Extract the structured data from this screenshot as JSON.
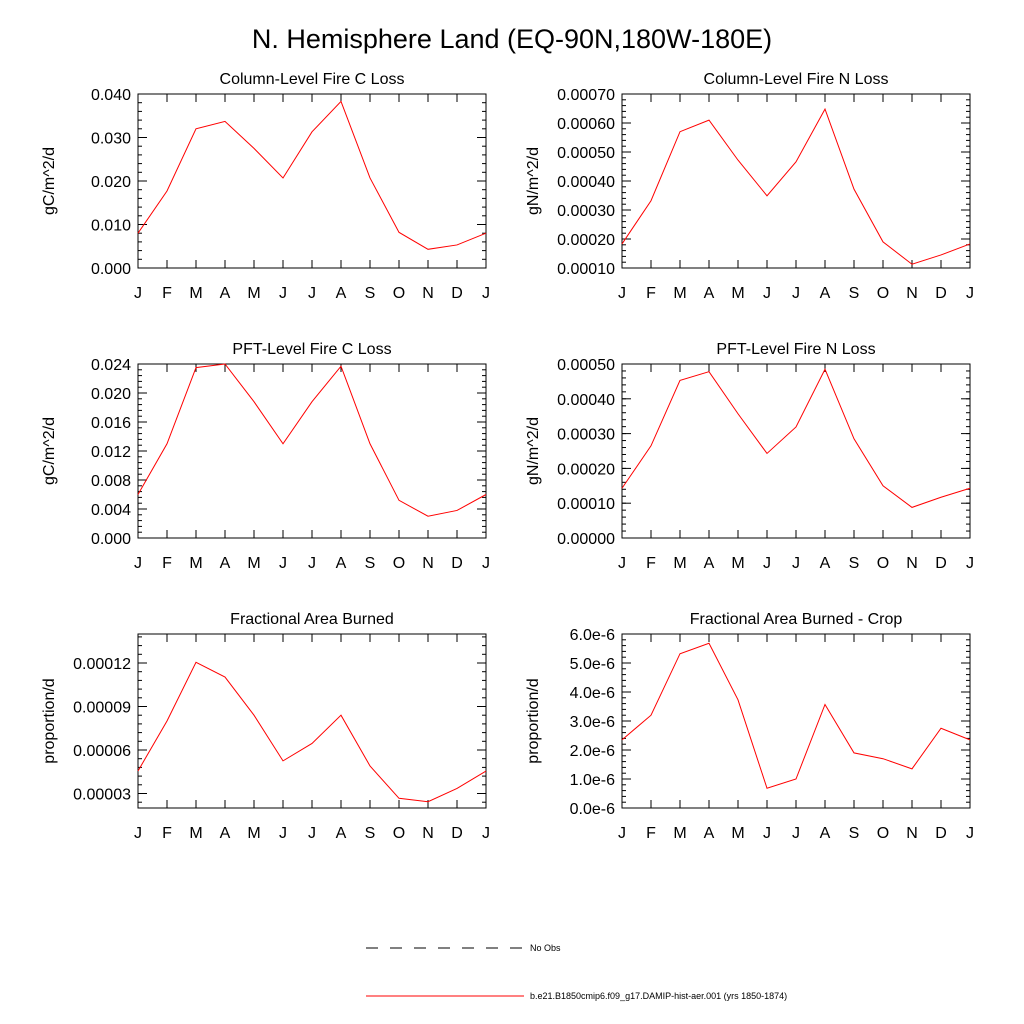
{
  "page_title": "N. Hemisphere Land (EQ-90N,180W-180E)",
  "colors": {
    "model_line": "#ff0000",
    "obs_line": "#000000",
    "axis": "#000000"
  },
  "legend": {
    "obs_label": "No Obs",
    "model_label": "b.e21.B1850cmip6.f09_g17.DAMIP-hist-aer.001 (yrs 1850-1874)"
  },
  "chart_data": [
    {
      "type": "line",
      "title": "Column-Level Fire C Loss",
      "xlabel": "",
      "ylabel": "gC/m^2/d",
      "categories": [
        "J",
        "F",
        "M",
        "A",
        "M",
        "J",
        "J",
        "A",
        "S",
        "O",
        "N",
        "D",
        "J"
      ],
      "ylim": [
        0.0,
        0.04
      ],
      "yticks": [
        0.0,
        0.01,
        0.02,
        0.03,
        0.04
      ],
      "ytick_labels": [
        "0.000",
        "0.010",
        "0.020",
        "0.030",
        "0.040"
      ],
      "grid": false,
      "series": [
        {
          "values": [
            0.008,
            0.0177,
            0.032,
            0.0337,
            0.0275,
            0.0207,
            0.0313,
            0.0383,
            0.0207,
            0.0082,
            0.0043,
            0.0053,
            0.008
          ]
        }
      ]
    },
    {
      "type": "line",
      "title": "Column-Level Fire N Loss",
      "xlabel": "",
      "ylabel": "gN/m^2/d",
      "categories": [
        "J",
        "F",
        "M",
        "A",
        "M",
        "J",
        "J",
        "A",
        "S",
        "O",
        "N",
        "D",
        "J"
      ],
      "ylim": [
        0.0001,
        0.0007
      ],
      "yticks": [
        0.0001,
        0.0002,
        0.0003,
        0.0004,
        0.0005,
        0.0006,
        0.0007
      ],
      "ytick_labels": [
        "0.00010",
        "0.00020",
        "0.00030",
        "0.00040",
        "0.00050",
        "0.00060",
        "0.00070"
      ],
      "grid": false,
      "series": [
        {
          "values": [
            0.000183,
            0.000332,
            0.00057,
            0.00061,
            0.000472,
            0.000349,
            0.000466,
            0.000648,
            0.000372,
            0.00019,
            0.000113,
            0.000145,
            0.000183
          ]
        }
      ]
    },
    {
      "type": "line",
      "title": "PFT-Level Fire C Loss",
      "xlabel": "",
      "ylabel": "gC/m^2/d",
      "categories": [
        "J",
        "F",
        "M",
        "A",
        "M",
        "J",
        "J",
        "A",
        "S",
        "O",
        "N",
        "D",
        "J"
      ],
      "ylim": [
        0.0,
        0.024
      ],
      "yticks": [
        0.0,
        0.004,
        0.008,
        0.012,
        0.016,
        0.02,
        0.024
      ],
      "ytick_labels": [
        "0.000",
        "0.004",
        "0.008",
        "0.012",
        "0.016",
        "0.020",
        "0.024"
      ],
      "grid": false,
      "series": [
        {
          "values": [
            0.006,
            0.013,
            0.0235,
            0.024,
            0.0188,
            0.013,
            0.0188,
            0.0237,
            0.013,
            0.0052,
            0.003,
            0.0038,
            0.006
          ]
        }
      ]
    },
    {
      "type": "line",
      "title": "PFT-Level Fire N Loss",
      "xlabel": "",
      "ylabel": "gN/m^2/d",
      "categories": [
        "J",
        "F",
        "M",
        "A",
        "M",
        "J",
        "J",
        "A",
        "S",
        "O",
        "N",
        "D",
        "J"
      ],
      "ylim": [
        0.0,
        0.0005
      ],
      "yticks": [
        0.0,
        0.0001,
        0.0002,
        0.0003,
        0.0004,
        0.0005
      ],
      "ytick_labels": [
        "0.00000",
        "0.00010",
        "0.00020",
        "0.00030",
        "0.00040",
        "0.00050"
      ],
      "grid": false,
      "series": [
        {
          "values": [
            0.000143,
            0.000265,
            0.000453,
            0.000478,
            0.000357,
            0.000243,
            0.000319,
            0.000485,
            0.000285,
            0.00015,
            8.8e-05,
            0.000117,
            0.000143
          ]
        }
      ]
    },
    {
      "type": "line",
      "title": "Fractional Area Burned",
      "xlabel": "",
      "ylabel": "proportion/d",
      "categories": [
        "J",
        "F",
        "M",
        "A",
        "M",
        "J",
        "J",
        "A",
        "S",
        "O",
        "N",
        "D",
        "J"
      ],
      "ylim": [
        2e-05,
        0.00014
      ],
      "yticks": [
        3e-05,
        6e-05,
        9e-05,
        0.00012
      ],
      "ytick_labels": [
        "0.00003",
        "0.00006",
        "0.00009",
        "0.00012"
      ],
      "grid": false,
      "series": [
        {
          "values": [
            4.55e-05,
            8e-05,
            0.0001205,
            0.0001103,
            8.4e-05,
            5.25e-05,
            6.45e-05,
            8.4e-05,
            4.9e-05,
            2.67e-05,
            2.43e-05,
            3.35e-05,
            4.55e-05
          ]
        }
      ]
    },
    {
      "type": "line",
      "title": "Fractional Area Burned - Crop",
      "xlabel": "",
      "ylabel": "proportion/d",
      "categories": [
        "J",
        "F",
        "M",
        "A",
        "M",
        "J",
        "J",
        "A",
        "S",
        "O",
        "N",
        "D",
        "J"
      ],
      "ylim": [
        0.0,
        6e-06
      ],
      "yticks": [
        0.0,
        1e-06,
        2e-06,
        3e-06,
        4e-06,
        5e-06,
        6e-06
      ],
      "ytick_labels": [
        "0.0e-6",
        "1.0e-6",
        "2.0e-6",
        "3.0e-6",
        "4.0e-6",
        "5.0e-6",
        "6.0e-6"
      ],
      "grid": false,
      "series": [
        {
          "values": [
            2.35e-06,
            3.2e-06,
            5.32e-06,
            5.68e-06,
            3.73e-06,
            6.8e-07,
            1e-06,
            3.57e-06,
            1.9e-06,
            1.7e-06,
            1.35e-06,
            2.75e-06,
            2.35e-06
          ]
        }
      ]
    }
  ]
}
